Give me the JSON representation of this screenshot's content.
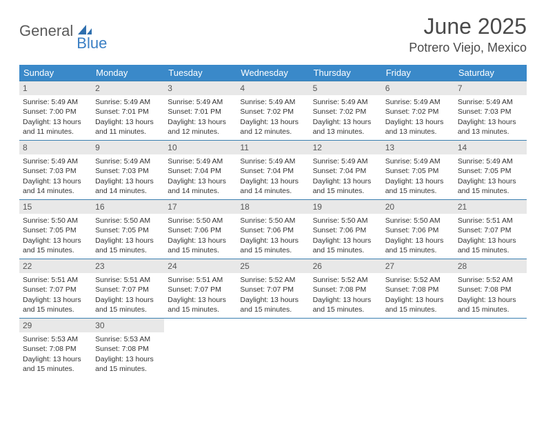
{
  "brand": {
    "word1": "General",
    "word2": "Blue",
    "word1_color": "#5a5a5a",
    "word2_color": "#3a7fc4"
  },
  "header": {
    "title": "June 2025",
    "location": "Potrero Viejo, Mexico"
  },
  "colors": {
    "header_bg": "#3a89c9",
    "header_text": "#ffffff",
    "row_border": "#3a7fb0",
    "daynum_bg": "#e8e8e8",
    "body_text": "#333333"
  },
  "weekdays": [
    "Sunday",
    "Monday",
    "Tuesday",
    "Wednesday",
    "Thursday",
    "Friday",
    "Saturday"
  ],
  "days": [
    {
      "n": 1,
      "sunrise": "5:49 AM",
      "sunset": "7:00 PM",
      "daylight": "13 hours and 11 minutes."
    },
    {
      "n": 2,
      "sunrise": "5:49 AM",
      "sunset": "7:01 PM",
      "daylight": "13 hours and 11 minutes."
    },
    {
      "n": 3,
      "sunrise": "5:49 AM",
      "sunset": "7:01 PM",
      "daylight": "13 hours and 12 minutes."
    },
    {
      "n": 4,
      "sunrise": "5:49 AM",
      "sunset": "7:02 PM",
      "daylight": "13 hours and 12 minutes."
    },
    {
      "n": 5,
      "sunrise": "5:49 AM",
      "sunset": "7:02 PM",
      "daylight": "13 hours and 13 minutes."
    },
    {
      "n": 6,
      "sunrise": "5:49 AM",
      "sunset": "7:02 PM",
      "daylight": "13 hours and 13 minutes."
    },
    {
      "n": 7,
      "sunrise": "5:49 AM",
      "sunset": "7:03 PM",
      "daylight": "13 hours and 13 minutes."
    },
    {
      "n": 8,
      "sunrise": "5:49 AM",
      "sunset": "7:03 PM",
      "daylight": "13 hours and 14 minutes."
    },
    {
      "n": 9,
      "sunrise": "5:49 AM",
      "sunset": "7:03 PM",
      "daylight": "13 hours and 14 minutes."
    },
    {
      "n": 10,
      "sunrise": "5:49 AM",
      "sunset": "7:04 PM",
      "daylight": "13 hours and 14 minutes."
    },
    {
      "n": 11,
      "sunrise": "5:49 AM",
      "sunset": "7:04 PM",
      "daylight": "13 hours and 14 minutes."
    },
    {
      "n": 12,
      "sunrise": "5:49 AM",
      "sunset": "7:04 PM",
      "daylight": "13 hours and 15 minutes."
    },
    {
      "n": 13,
      "sunrise": "5:49 AM",
      "sunset": "7:05 PM",
      "daylight": "13 hours and 15 minutes."
    },
    {
      "n": 14,
      "sunrise": "5:49 AM",
      "sunset": "7:05 PM",
      "daylight": "13 hours and 15 minutes."
    },
    {
      "n": 15,
      "sunrise": "5:50 AM",
      "sunset": "7:05 PM",
      "daylight": "13 hours and 15 minutes."
    },
    {
      "n": 16,
      "sunrise": "5:50 AM",
      "sunset": "7:05 PM",
      "daylight": "13 hours and 15 minutes."
    },
    {
      "n": 17,
      "sunrise": "5:50 AM",
      "sunset": "7:06 PM",
      "daylight": "13 hours and 15 minutes."
    },
    {
      "n": 18,
      "sunrise": "5:50 AM",
      "sunset": "7:06 PM",
      "daylight": "13 hours and 15 minutes."
    },
    {
      "n": 19,
      "sunrise": "5:50 AM",
      "sunset": "7:06 PM",
      "daylight": "13 hours and 15 minutes."
    },
    {
      "n": 20,
      "sunrise": "5:50 AM",
      "sunset": "7:06 PM",
      "daylight": "13 hours and 15 minutes."
    },
    {
      "n": 21,
      "sunrise": "5:51 AM",
      "sunset": "7:07 PM",
      "daylight": "13 hours and 15 minutes."
    },
    {
      "n": 22,
      "sunrise": "5:51 AM",
      "sunset": "7:07 PM",
      "daylight": "13 hours and 15 minutes."
    },
    {
      "n": 23,
      "sunrise": "5:51 AM",
      "sunset": "7:07 PM",
      "daylight": "13 hours and 15 minutes."
    },
    {
      "n": 24,
      "sunrise": "5:51 AM",
      "sunset": "7:07 PM",
      "daylight": "13 hours and 15 minutes."
    },
    {
      "n": 25,
      "sunrise": "5:52 AM",
      "sunset": "7:07 PM",
      "daylight": "13 hours and 15 minutes."
    },
    {
      "n": 26,
      "sunrise": "5:52 AM",
      "sunset": "7:08 PM",
      "daylight": "13 hours and 15 minutes."
    },
    {
      "n": 27,
      "sunrise": "5:52 AM",
      "sunset": "7:08 PM",
      "daylight": "13 hours and 15 minutes."
    },
    {
      "n": 28,
      "sunrise": "5:52 AM",
      "sunset": "7:08 PM",
      "daylight": "13 hours and 15 minutes."
    },
    {
      "n": 29,
      "sunrise": "5:53 AM",
      "sunset": "7:08 PM",
      "daylight": "13 hours and 15 minutes."
    },
    {
      "n": 30,
      "sunrise": "5:53 AM",
      "sunset": "7:08 PM",
      "daylight": "13 hours and 15 minutes."
    }
  ],
  "labels": {
    "sunrise": "Sunrise:",
    "sunset": "Sunset:",
    "daylight": "Daylight:"
  },
  "layout": {
    "first_weekday_index": 0,
    "total_cells": 35
  }
}
